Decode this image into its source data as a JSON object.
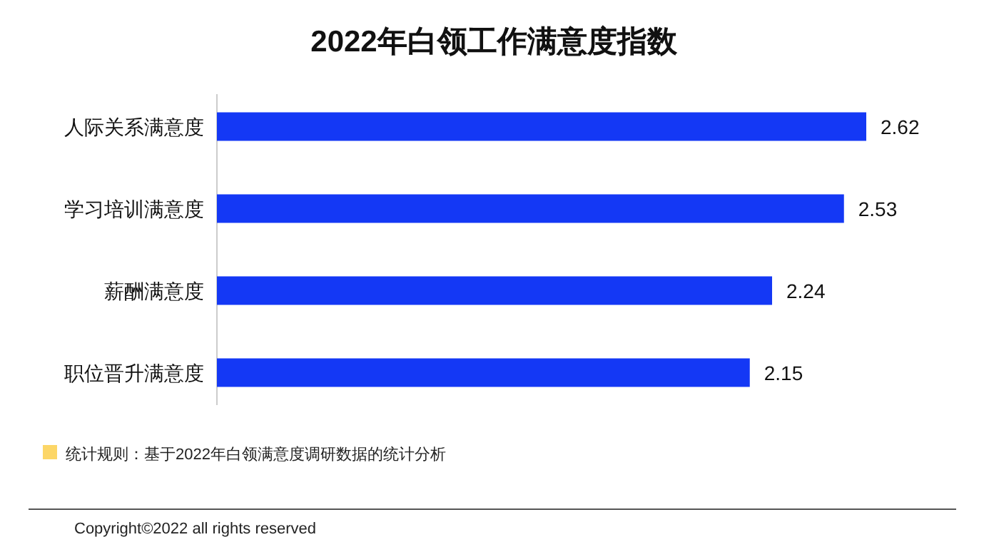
{
  "chart_data": {
    "type": "bar",
    "orientation": "horizontal",
    "title": "2022年白领工作满意度指数",
    "categories": [
      "人际关系满意度",
      "学习培训满意度",
      "薪酬满意度",
      "职位晋升满意度"
    ],
    "values": [
      2.62,
      2.53,
      2.24,
      2.15
    ],
    "color": "#1438f5",
    "data_labels": true,
    "tick_labels": "y",
    "annotations": [
      "统计规则：基于2022年白领满意度调研数据的统计分析",
      "Copyright©2022 all rights reserved"
    ]
  }
}
